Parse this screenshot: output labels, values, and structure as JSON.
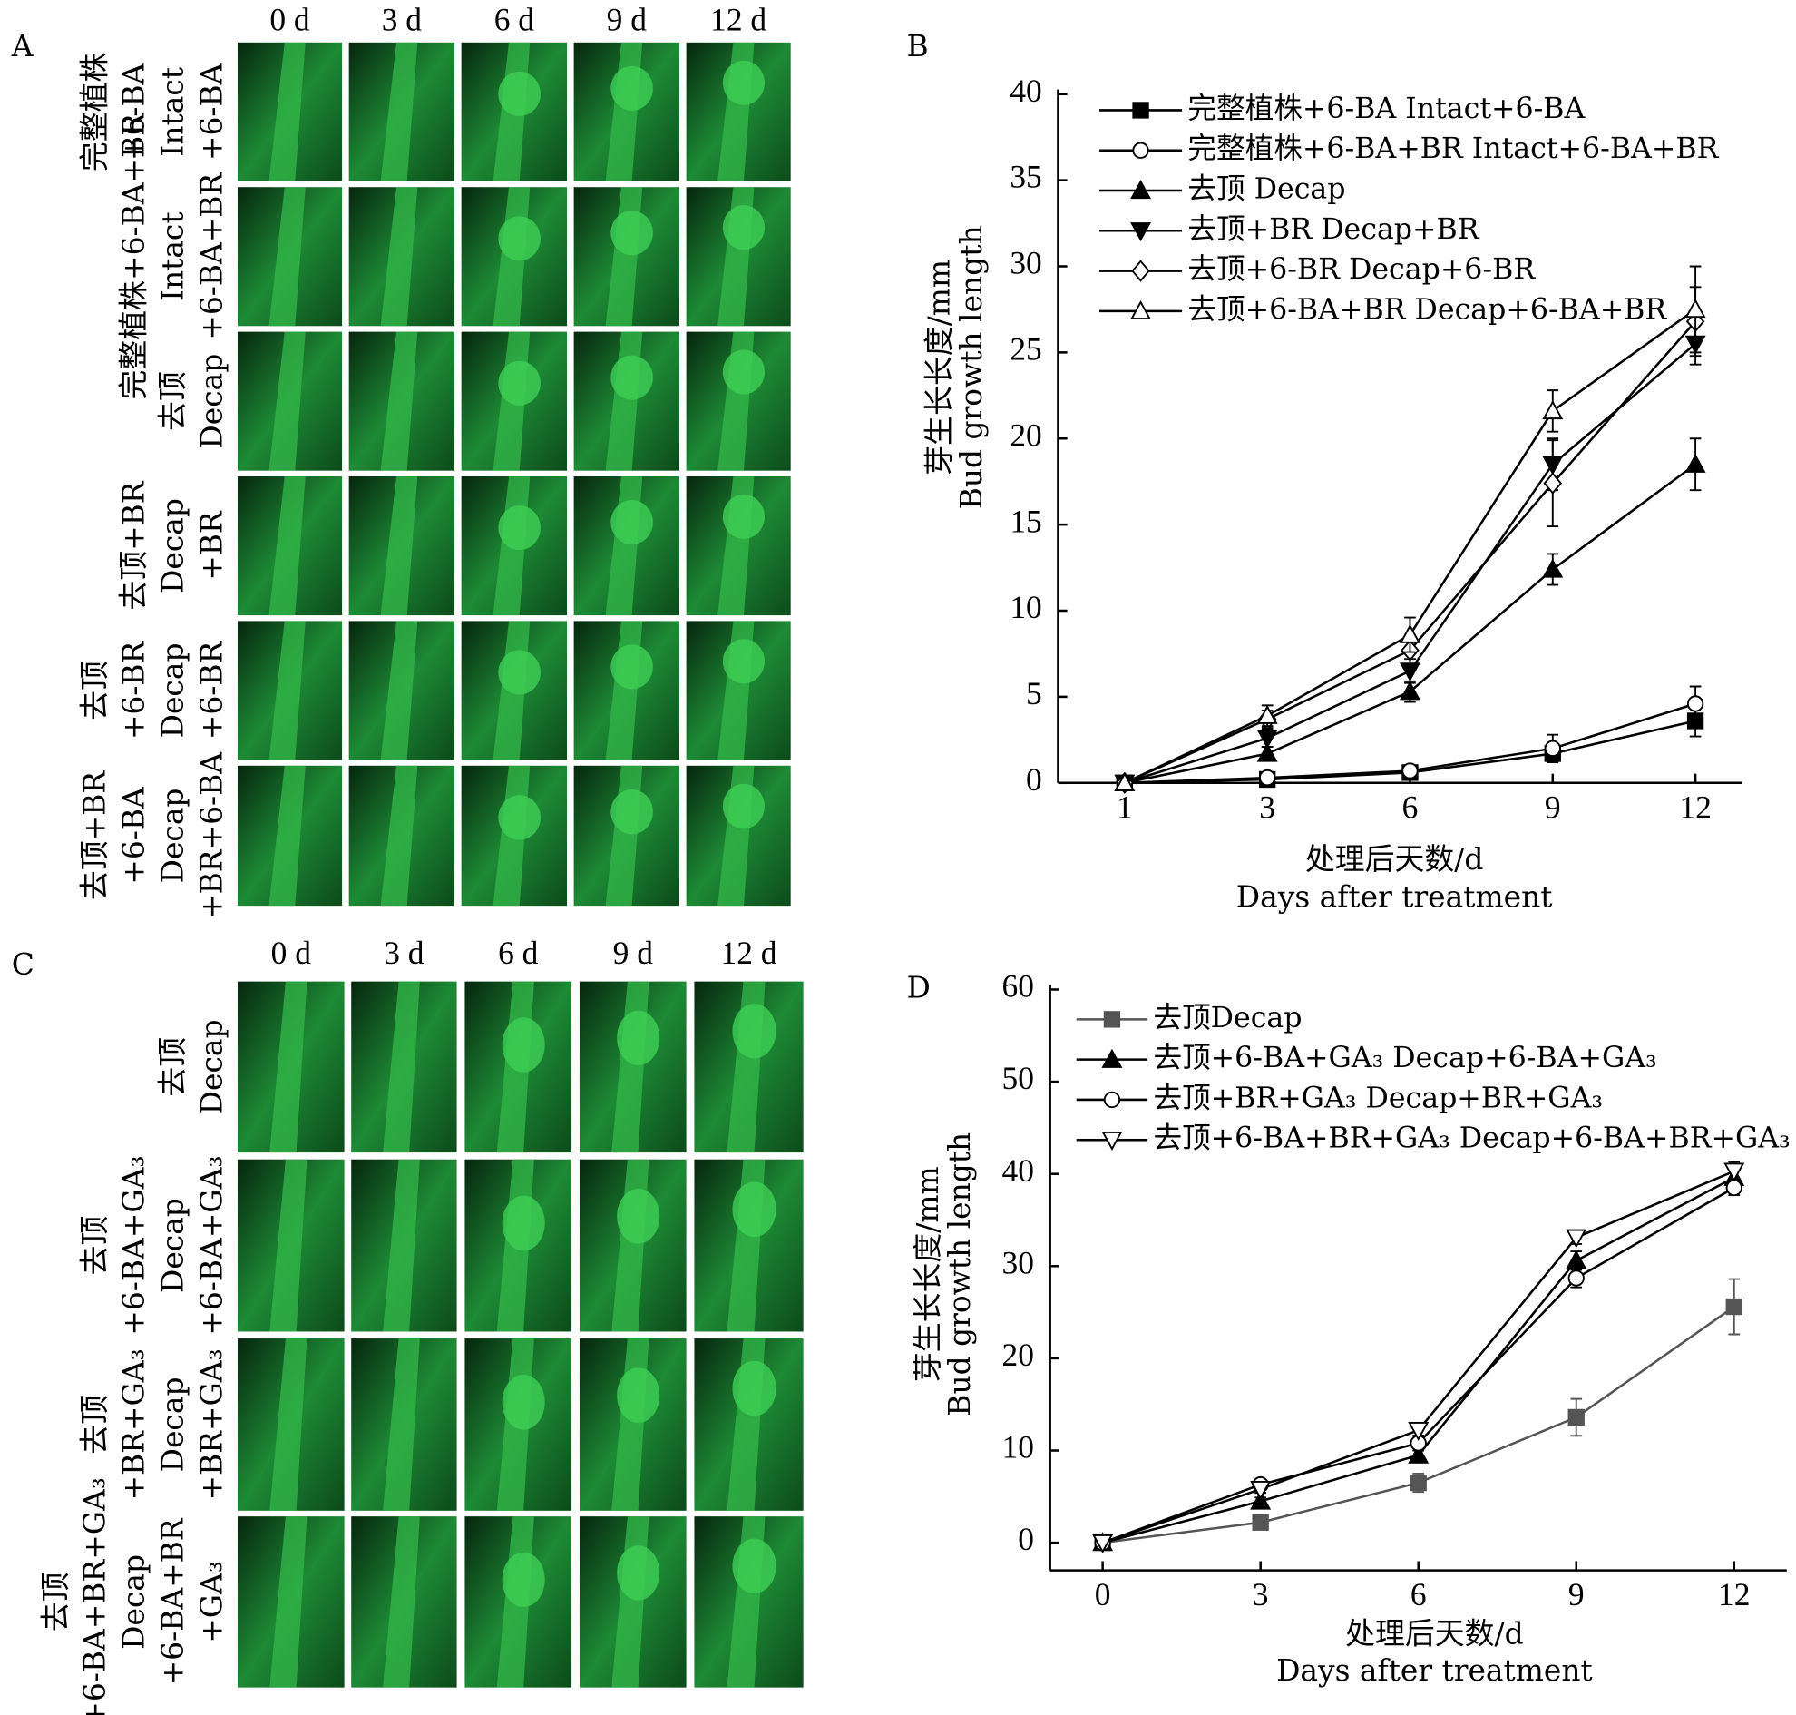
{
  "photo_panels": [
    {
      "label": "A",
      "columns": [
        "0 d",
        "3 d",
        "6 d",
        "9 d",
        "12 d"
      ],
      "rows": [
        [
          "完整植株",
          "+6-BA",
          "Intact",
          "+6-BA"
        ],
        [
          "完整植株+6-BA+BR",
          "Intact",
          "+6-BA+BR"
        ],
        [
          "去顶",
          "Decap"
        ],
        [
          "去顶+BR",
          "Decap",
          "+BR"
        ],
        [
          "去顶",
          "+6-BR",
          "Decap",
          "+6-BR"
        ],
        [
          "去顶+BR",
          "+6-BA",
          "Decap",
          "+BR+6-BA"
        ]
      ]
    },
    {
      "label": "C",
      "columns": [
        "0 d",
        "3 d",
        "6 d",
        "9 d",
        "12 d"
      ],
      "rows": [
        [
          "去顶",
          "Decap"
        ],
        [
          "去顶",
          "+6-BA+GA₃",
          "Decap",
          "+6-BA+GA₃"
        ],
        [
          "去顶",
          "+BR+GA₃",
          "Decap",
          "+BR+GA₃"
        ],
        [
          "去顶",
          "+6-BA+BR+GA₃",
          "Decap",
          "+6-BA+BR",
          "+GA₃"
        ]
      ]
    }
  ],
  "chart_data": [
    {
      "type": "line",
      "panel": "B",
      "ylabel": [
        "芽生长长度/mm",
        "Bud growth length"
      ],
      "xlabel": [
        "处理后天数/d",
        "Days after treatment"
      ],
      "categories": [
        "1",
        "3",
        "6",
        "9",
        "12"
      ],
      "ylim": [
        0,
        40
      ],
      "yticks": [
        0,
        5,
        10,
        15,
        20,
        25,
        30,
        35,
        40
      ],
      "series": [
        {
          "name": "完整植株+6-BA Intact+6-BA",
          "color": "#000000",
          "marker": "square-filled",
          "values": [
            0,
            0.2,
            0.6,
            1.7,
            3.6
          ],
          "errors": [
            0,
            0.1,
            0.2,
            0.4,
            0.9
          ]
        },
        {
          "name": "完整植株+6-BA+BR Intact+6-BA+BR",
          "color": "#000000",
          "marker": "circle-open",
          "values": [
            0,
            0.3,
            0.7,
            2.0,
            4.6
          ],
          "errors": [
            0,
            0.1,
            0.2,
            0.8,
            1.0
          ]
        },
        {
          "name": "去顶 Decap",
          "color": "#000000",
          "marker": "up-filled",
          "values": [
            0,
            1.7,
            5.3,
            12.4,
            18.5
          ],
          "errors": [
            0,
            0.4,
            0.6,
            0.9,
            1.5
          ]
        },
        {
          "name": "去顶+BR Decap+BR",
          "color": "#000000",
          "marker": "down-filled",
          "values": [
            0,
            2.6,
            6.5,
            18.5,
            25.5
          ],
          "errors": [
            0,
            0.5,
            0.7,
            1.5,
            1.2
          ]
        },
        {
          "name": "去顶+6-BR Decap+6-BR",
          "color": "#000000",
          "marker": "diamond-open",
          "values": [
            0,
            3.7,
            7.7,
            17.4,
            26.8
          ],
          "errors": [
            0,
            0.5,
            0.8,
            2.5,
            2.0
          ]
        },
        {
          "name": "去顶+6-BA+BR Decap+6-BA+BR",
          "color": "#000000",
          "marker": "up-open",
          "values": [
            0,
            3.9,
            8.6,
            21.6,
            27.5
          ],
          "errors": [
            0,
            0.6,
            1.0,
            1.2,
            2.5
          ]
        }
      ]
    },
    {
      "type": "line",
      "panel": "D",
      "ylabel": [
        "芽生长长度/mm",
        "Bud growth length"
      ],
      "xlabel": [
        "处理后天数/d",
        "Days after treatment"
      ],
      "x": [
        0,
        3,
        6,
        9,
        12
      ],
      "xlim": [
        -1,
        13
      ],
      "xticks": [
        0,
        3,
        6,
        9,
        12
      ],
      "ylim": [
        -3,
        60
      ],
      "yticks": [
        0,
        10,
        20,
        30,
        40,
        50,
        60
      ],
      "series": [
        {
          "name": "去顶Decap",
          "color": "#555555",
          "marker": "square-filled",
          "values": [
            0,
            2.2,
            6.5,
            13.6,
            25.6
          ],
          "errors": [
            0,
            0.3,
            1.0,
            2.0,
            3.0
          ]
        },
        {
          "name": "去顶+6-BA+GA₃ Decap+6-BA+GA₃",
          "color": "#000000",
          "marker": "up-filled",
          "values": [
            0,
            4.5,
            9.5,
            30.6,
            39.6
          ],
          "errors": [
            0,
            0.4,
            0.8,
            1.0,
            1.0
          ]
        },
        {
          "name": "去顶+BR+GA₃ Decap+BR+GA₃",
          "color": "#000000",
          "marker": "circle-open",
          "values": [
            0,
            6.3,
            10.8,
            28.7,
            38.5
          ],
          "errors": [
            0,
            0.5,
            0.8,
            1.0,
            0.8
          ]
        },
        {
          "name": "去顶+6-BA+BR+GA₃ Decap+6-BA+BR+GA₃",
          "color": "#000000",
          "marker": "down-open",
          "values": [
            0,
            5.8,
            12.2,
            33.1,
            40.3
          ],
          "errors": [
            0,
            0.4,
            0.6,
            0.7,
            1.0
          ]
        }
      ]
    }
  ]
}
